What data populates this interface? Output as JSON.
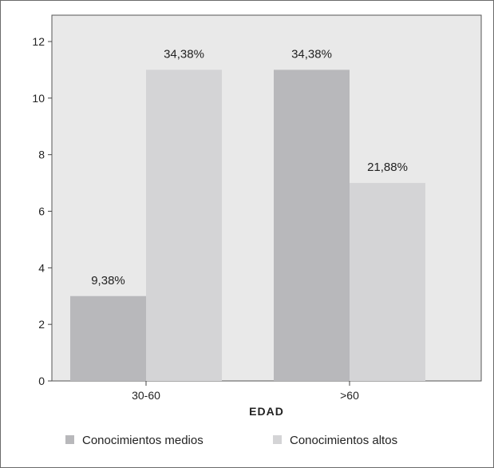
{
  "chart_data": {
    "type": "bar",
    "categories": [
      "30-60",
      ">60"
    ],
    "series": [
      {
        "name": "Conocimientos medios",
        "values": [
          3,
          11
        ],
        "labels": [
          "9,38%",
          "34,38%"
        ],
        "color": "#b8b8bb"
      },
      {
        "name": "Conocimientos altos",
        "values": [
          11,
          7
        ],
        "labels": [
          "34,38%",
          "21,88%"
        ],
        "color": "#d4d4d6"
      }
    ],
    "xlabel": "EDAD",
    "ylabel": "",
    "ylim": [
      0,
      12
    ],
    "yticks": [
      0,
      2,
      4,
      6,
      8,
      10,
      12
    ],
    "grid": false,
    "legend_position": "bottom",
    "plot_background": "#e9e9e9"
  }
}
